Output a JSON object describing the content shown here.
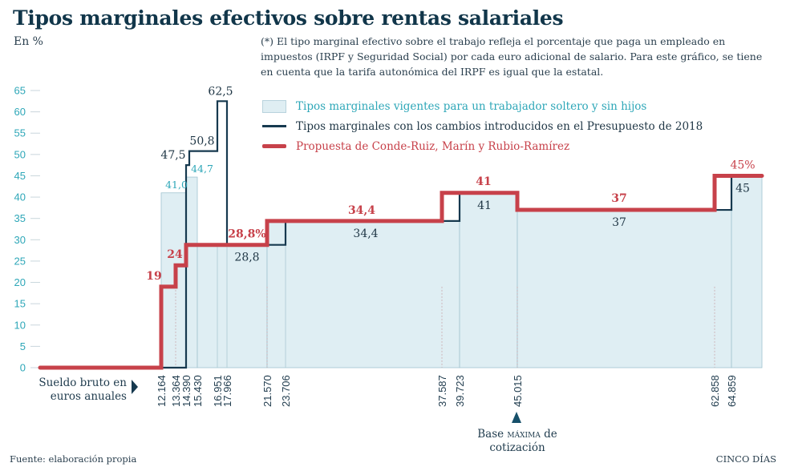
{
  "header": {
    "title": "Tipos marginales efectivos sobre rentas salariales",
    "subtitle": "En %",
    "note": "(*) El tipo marginal efectivo sobre el trabajo refleja el porcentaje que paga un empleado en impuestos (IRPF y Seguridad Social) por cada euro adicional de salario. Para este gráfico, se tiene en cuenta que la tarifa autonómica del IRPF es igual que la estatal."
  },
  "legend": [
    {
      "label": "Tipos marginales vigentes para un trabajador soltero y sin hijos",
      "style": "fill"
    },
    {
      "label": "Tipos marginales con los cambios introducidos en el Presupuesto de 2018",
      "style": "dark-line"
    },
    {
      "label": "Propuesta de Conde-Ruiz, Marín y Rubio-Ramírez",
      "style": "red-line"
    }
  ],
  "xaxis_caption": {
    "line1": "Sueldo bruto en",
    "line2": "euros anuales"
  },
  "base_annotation": {
    "line1_pre": "Base ",
    "line1_caps": "máxima",
    "line1_post": " de",
    "line2": "cotización"
  },
  "footer": {
    "source": "Fuente: elaboración propia",
    "brand": "CINCO DÍAS"
  },
  "colors": {
    "fill": "#dfeef3",
    "fill_stroke": "#9fc3d0",
    "dark": "#16394f",
    "red": "#c7414a",
    "tick": "#2ea7b8"
  },
  "chart_data": {
    "type": "line",
    "title": "Tipos marginales efectivos sobre rentas salariales",
    "xlabel": "Sueldo bruto en euros anuales",
    "ylabel": "En %",
    "ylim": [
      0,
      65
    ],
    "yticks": [
      0,
      5,
      10,
      15,
      20,
      25,
      30,
      35,
      40,
      45,
      50,
      55,
      60,
      65
    ],
    "grid": false,
    "legend_position": "top-right",
    "x_breakpoints": [
      "12.164",
      "13.364",
      "14.390",
      "15.430",
      "16.951",
      "17.966",
      "21.570",
      "23.706",
      "37.587",
      "39.723",
      "45.015",
      "62.858",
      "64.859"
    ],
    "x_values": [
      12164,
      13364,
      14390,
      15430,
      16951,
      17966,
      21570,
      23706,
      37587,
      39723,
      45015,
      62858,
      64859
    ],
    "series": [
      {
        "name": "Tipos marginales vigentes para un trabajador soltero y sin hijos",
        "style": "area-step",
        "steps": [
          {
            "from": 0,
            "to": 12164,
            "value": 0
          },
          {
            "from": 12164,
            "to": 14390,
            "value": 41.0
          },
          {
            "from": 14390,
            "to": 15430,
            "value": 44.7
          },
          {
            "from": 15430,
            "to": 21570,
            "value": 28.8
          },
          {
            "from": 21570,
            "to": 39723,
            "value": 34.4
          },
          {
            "from": 39723,
            "to": 45015,
            "value": 41
          },
          {
            "from": 45015,
            "to": 64859,
            "value": 37
          },
          {
            "from": 64859,
            "to": 70000,
            "value": 45
          }
        ],
        "labels": [
          {
            "x": 12164,
            "text": "41,0",
            "value": 41.0
          },
          {
            "x": 14390,
            "text": "44,7",
            "value": 44.7
          }
        ]
      },
      {
        "name": "Tipos marginales con los cambios introducidos en el Presupuesto de 2018",
        "style": "step-line",
        "steps": [
          {
            "from": 12164,
            "to": 14390,
            "value": 0
          },
          {
            "from": 14390,
            "to": 14700,
            "value": 47.5
          },
          {
            "from": 14700,
            "to": 16951,
            "value": 50.8
          },
          {
            "from": 16951,
            "to": 17966,
            "value": 62.5
          },
          {
            "from": 17966,
            "to": 23706,
            "value": 28.8
          },
          {
            "from": 23706,
            "to": 39723,
            "value": 34.4
          },
          {
            "from": 39723,
            "to": 45015,
            "value": 41
          },
          {
            "from": 45015,
            "to": 64859,
            "value": 37
          },
          {
            "from": 64859,
            "to": 70000,
            "value": 45
          }
        ],
        "labels": [
          {
            "text": "47,5",
            "value": 47.5
          },
          {
            "text": "50,8",
            "value": 50.8
          },
          {
            "text": "62,5",
            "value": 62.5
          },
          {
            "text": "28,8",
            "value": 28.8
          },
          {
            "text": "34,4",
            "value": 34.4
          },
          {
            "text": "41",
            "value": 41
          },
          {
            "text": "37",
            "value": 37
          },
          {
            "text": "45",
            "value": 45
          }
        ]
      },
      {
        "name": "Propuesta de Conde-Ruiz, Marín y Rubio-Ramírez",
        "style": "step-line-thick",
        "steps": [
          {
            "from": 0,
            "to": 12164,
            "value": 0
          },
          {
            "from": 12164,
            "to": 13364,
            "value": 19
          },
          {
            "from": 13364,
            "to": 14390,
            "value": 24
          },
          {
            "from": 14390,
            "to": 21570,
            "value": 28.8
          },
          {
            "from": 21570,
            "to": 37587,
            "value": 34.4
          },
          {
            "from": 37587,
            "to": 45015,
            "value": 41
          },
          {
            "from": 45015,
            "to": 62858,
            "value": 37
          },
          {
            "from": 62858,
            "to": 70000,
            "value": 45
          }
        ],
        "labels": [
          {
            "text": "19",
            "value": 19
          },
          {
            "text": "24",
            "value": 24
          },
          {
            "text": "28,8%",
            "value": 28.8
          },
          {
            "text": "34,4",
            "value": 34.4
          },
          {
            "text": "41",
            "value": 41
          },
          {
            "text": "37",
            "value": 37
          },
          {
            "text": "45%",
            "value": 45
          }
        ]
      }
    ]
  }
}
